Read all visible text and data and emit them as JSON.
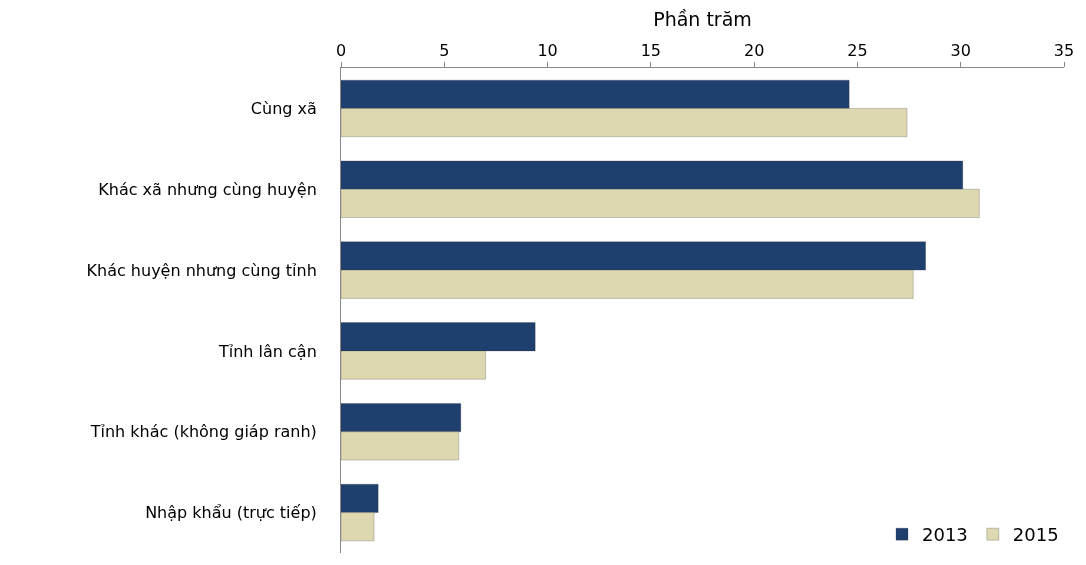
{
  "chart_data": {
    "type": "bar",
    "orientation": "horizontal",
    "xlabel": "Phần trăm",
    "categories": [
      "Cùng xã",
      "Khác xã nhưng cùng huyện",
      "Khác huyện nhưng cùng tỉnh",
      "Tỉnh lân cận",
      "Tỉnh khác (không giáp ranh)",
      "Nhập khẩu (trực tiếp)"
    ],
    "series": [
      {
        "name": "2013",
        "color": "#1f3f6e",
        "values": [
          24.6,
          30.1,
          28.3,
          9.4,
          5.8,
          1.8
        ]
      },
      {
        "name": "2015",
        "color": "#ddd8b0",
        "values": [
          27.4,
          30.9,
          27.7,
          7.0,
          5.7,
          1.6
        ]
      }
    ],
    "xlim": [
      0,
      35
    ],
    "xticks": [
      0,
      5,
      10,
      15,
      20,
      25,
      30,
      35
    ],
    "grid": false,
    "legend": "bottom right"
  }
}
